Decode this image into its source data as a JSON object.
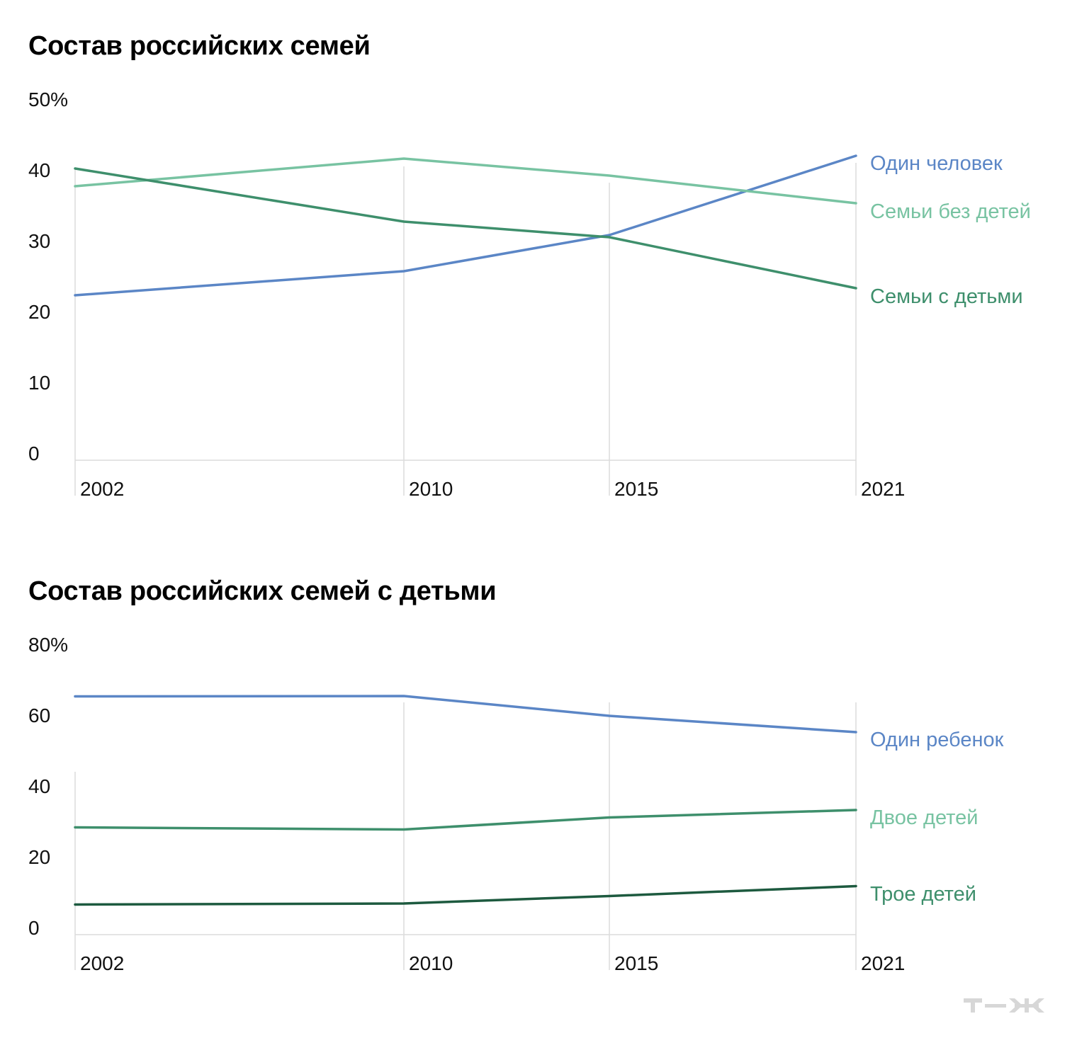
{
  "chart_data": [
    {
      "type": "line",
      "title": "Состав российских семей",
      "x": [
        "2002",
        "2010",
        "2015",
        "2021"
      ],
      "ylim": [
        0,
        50
      ],
      "y_ticks": [
        "50%",
        "40",
        "30",
        "20",
        "10",
        "0"
      ],
      "grid": "vertical lines at each year",
      "legend": "labels at right end of lines",
      "series": [
        {
          "name": "Один человек",
          "values": [
            22.3,
            25.7,
            30.8,
            42.0
          ],
          "color": "#5b86c6"
        },
        {
          "name": "Семьи без детей",
          "values": [
            37.7,
            41.6,
            39.2,
            35.3
          ],
          "color": "#78c3a2"
        },
        {
          "name": "Семьи с детьми",
          "values": [
            40.2,
            32.7,
            30.5,
            23.3
          ],
          "color": "#3e8f6c"
        }
      ]
    },
    {
      "type": "line",
      "title": "Состав российских семей с детьми",
      "x": [
        "2002",
        "2010",
        "2015",
        "2021"
      ],
      "ylim": [
        0,
        80
      ],
      "y_ticks": [
        "80%",
        "60",
        "40",
        "20",
        "0"
      ],
      "grid": "vertical lines at each year",
      "legend": "labels at right end of lines",
      "series": [
        {
          "name": "Один ребенок",
          "values": [
            65.3,
            65.4,
            59.8,
            55.2
          ],
          "color": "#5b86c6",
          "label_color": "#5b86c6"
        },
        {
          "name": "Двое детей",
          "values": [
            28.3,
            27.7,
            31.1,
            33.2
          ],
          "color": "#3e8f6c",
          "label_color": "#78c3a2"
        },
        {
          "name": "Трое детей",
          "values": [
            6.5,
            6.8,
            8.9,
            11.7
          ],
          "color": "#1d5a3f",
          "label_color": "#3e8f6c"
        }
      ]
    }
  ],
  "logo": {
    "text": "т—ж",
    "color": "#d7d7d7"
  }
}
